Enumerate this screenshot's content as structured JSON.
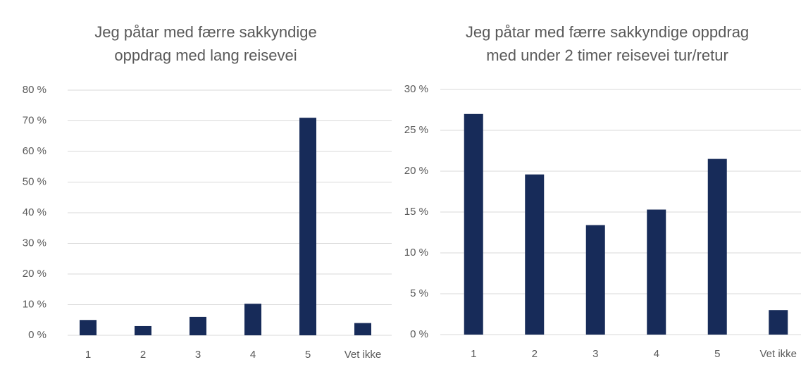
{
  "chart_data": [
    {
      "type": "bar",
      "title": [
        "Jeg påtar med færre sakkyndige",
        "oppdrag med lang reisevei"
      ],
      "categories": [
        "1",
        "2",
        "3",
        "4",
        "5",
        "Vet ikke"
      ],
      "values": [
        5,
        3,
        6,
        10.3,
        71,
        4
      ],
      "color": "#172b59",
      "ylim": [
        0,
        80
      ],
      "yticks": [
        {
          "value": 0,
          "label": "0 %"
        },
        {
          "value": 10,
          "label": "10 %"
        },
        {
          "value": 20,
          "label": "20 %"
        },
        {
          "value": 30,
          "label": "30 %"
        },
        {
          "value": 40,
          "label": "40 %"
        },
        {
          "value": 50,
          "label": "50 %"
        },
        {
          "value": 60,
          "label": "60 %"
        },
        {
          "value": 70,
          "label": "70 %"
        },
        {
          "value": 80,
          "label": "80 %"
        }
      ],
      "grid": true
    },
    {
      "type": "bar",
      "title": [
        "Jeg påtar med færre sakkyndige oppdrag",
        "med under 2 timer reisevei tur/retur"
      ],
      "categories": [
        "1",
        "2",
        "3",
        "4",
        "5",
        "Vet ikke"
      ],
      "values": [
        27,
        19.6,
        13.4,
        15.3,
        21.5,
        3
      ],
      "color": "#172b59",
      "ylim": [
        0,
        30
      ],
      "yticks": [
        {
          "value": 0,
          "label": "0 %"
        },
        {
          "value": 5,
          "label": "5 %"
        },
        {
          "value": 10,
          "label": "10 %"
        },
        {
          "value": 15,
          "label": "15 %"
        },
        {
          "value": 20,
          "label": "20 %"
        },
        {
          "value": 25,
          "label": "25 %"
        },
        {
          "value": 30,
          "label": "30 %"
        }
      ],
      "grid": true
    }
  ]
}
